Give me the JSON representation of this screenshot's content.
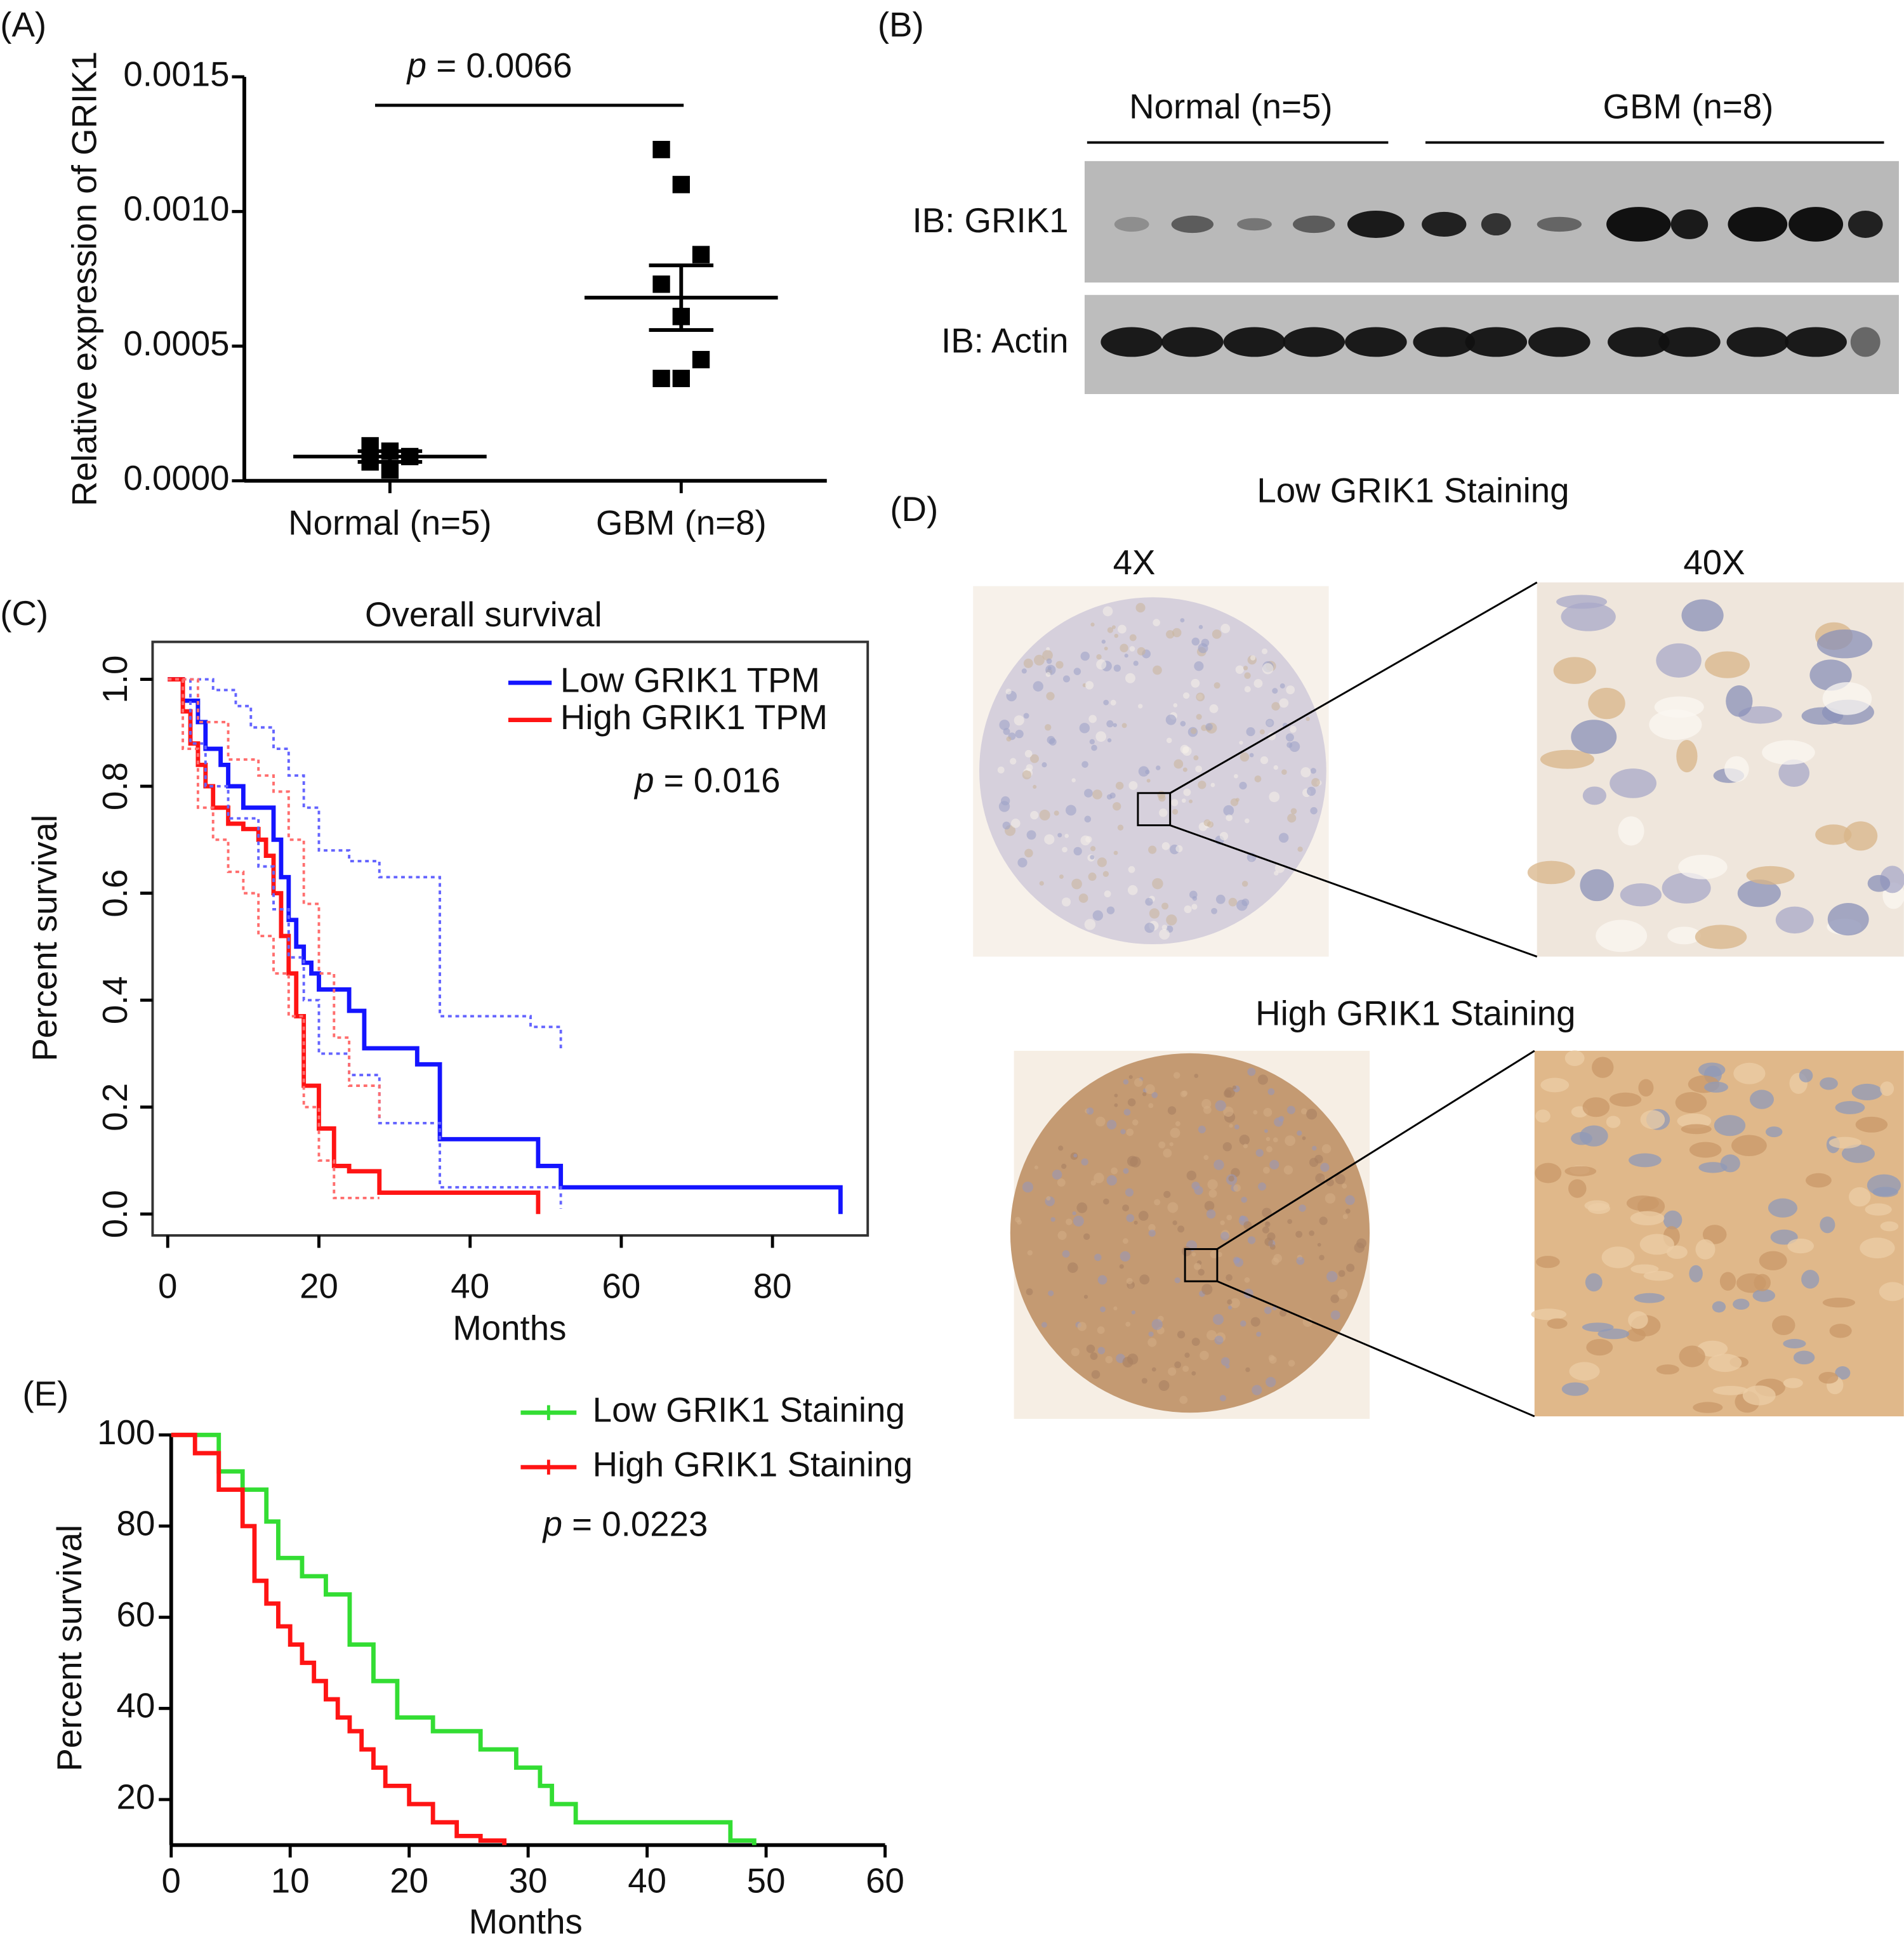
{
  "chart_data": [
    {
      "type": "dot",
      "panel_label": "(A)",
      "y_label": "Relative expression of GRIK1",
      "categories": [
        "Normal (n=5)",
        "GBM (n=8)"
      ],
      "values": [
        [
          0.00013,
          0.00011,
          9e-05,
          7e-05,
          4e-05
        ],
        [
          0.00123,
          0.0011,
          0.00084,
          0.00073,
          0.00061,
          0.00045,
          0.00038,
          0.00038
        ]
      ],
      "means": [
        9e-05,
        0.00068
      ],
      "sems": [
        2e-05,
        0.00012
      ],
      "color": "#000000",
      "ylim": [
        0,
        0.0015
      ],
      "yticks": [
        {
          "value": 0,
          "label": "0.0000"
        },
        {
          "value": 0.0005,
          "label": "0.0005"
        },
        {
          "value": 0.001,
          "label": "0.0010"
        },
        {
          "value": 0.0015,
          "label": "0.0015"
        }
      ],
      "annotation": "p = 0.0066"
    },
    {
      "type": "step",
      "panel_label": "(C)",
      "title": "Overall survival",
      "x_label": "Months",
      "y_label": "Percent survival",
      "xlim": [
        -2,
        92.6
      ],
      "ylim": [
        -0.04,
        1.07
      ],
      "xticks": [
        0,
        20,
        40,
        60,
        80
      ],
      "yticks": [
        {
          "value": 0,
          "label": "0.0"
        },
        0.2,
        0.4,
        0.6,
        0.8,
        {
          "value": 1,
          "label": "1.0"
        }
      ],
      "box": true,
      "legend": "top-right",
      "annotation": "p = 0.016",
      "series": [
        {
          "name": "Low GRIK1 TPM",
          "color": "#1414ff",
          "x": [
            0,
            2,
            4,
            5,
            7,
            8,
            10,
            14,
            15,
            16,
            17,
            18,
            19,
            20,
            22,
            24,
            26,
            30,
            33,
            36,
            49,
            52,
            89
          ],
          "values": [
            1.0,
            0.96,
            0.92,
            0.87,
            0.84,
            0.8,
            0.76,
            0.7,
            0.63,
            0.55,
            0.5,
            0.47,
            0.45,
            0.42,
            0.42,
            0.38,
            0.31,
            0.31,
            0.28,
            0.14,
            0.09,
            0.05,
            0.0
          ]
        },
        {
          "name": "High GRIK1 TPM",
          "color": "#ff1414",
          "x": [
            0,
            2,
            3,
            4,
            5,
            6,
            8,
            10,
            12,
            13,
            14,
            15,
            16,
            17,
            18,
            20,
            22,
            24,
            28,
            49
          ],
          "values": [
            1.0,
            0.94,
            0.88,
            0.84,
            0.8,
            0.76,
            0.73,
            0.72,
            0.7,
            0.67,
            0.6,
            0.52,
            0.45,
            0.37,
            0.24,
            0.16,
            0.09,
            0.08,
            0.04,
            0.0
          ]
        },
        {
          "color": "#6464ff",
          "dash": true,
          "x": [
            0,
            3,
            6,
            9,
            11,
            14,
            16,
            18,
            20,
            24,
            28,
            36,
            48,
            52
          ],
          "values": [
            1.0,
            1.0,
            0.98,
            0.95,
            0.91,
            0.87,
            0.82,
            0.76,
            0.68,
            0.66,
            0.63,
            0.37,
            0.35,
            0.31
          ]
        },
        {
          "color": "#6464ff",
          "dash": true,
          "x": [
            0,
            3,
            5,
            8,
            12,
            14,
            16,
            18,
            20,
            24,
            28,
            36,
            52
          ],
          "values": [
            1.0,
            0.88,
            0.8,
            0.74,
            0.65,
            0.57,
            0.48,
            0.4,
            0.3,
            0.26,
            0.17,
            0.05,
            0.01
          ]
        },
        {
          "color": "#ff6e6e",
          "dash": true,
          "x": [
            0,
            4,
            8,
            12,
            14,
            16,
            18,
            20,
            22,
            24,
            28
          ],
          "values": [
            1.0,
            0.92,
            0.85,
            0.82,
            0.79,
            0.7,
            0.58,
            0.45,
            0.33,
            0.24,
            0.18
          ]
        },
        {
          "color": "#ff6e6e",
          "dash": true,
          "x": [
            0,
            2,
            4,
            6,
            8,
            10,
            12,
            14,
            16,
            18,
            20,
            22,
            28
          ],
          "values": [
            1.0,
            0.87,
            0.76,
            0.7,
            0.64,
            0.6,
            0.52,
            0.45,
            0.37,
            0.2,
            0.1,
            0.03,
            0.03
          ]
        }
      ]
    },
    {
      "type": "step",
      "panel_label": "(E)",
      "x_label": "Months",
      "y_label": "Percent survival",
      "xlim": [
        0,
        60
      ],
      "ylim": [
        10,
        100
      ],
      "xticks": [
        0,
        10,
        20,
        30,
        40,
        50,
        60
      ],
      "yticks": [
        20,
        40,
        60,
        80,
        100
      ],
      "box": false,
      "legend": "top-right",
      "annotation": "p = 0.0223",
      "series": [
        {
          "name": "Low GRIK1 Staining",
          "color": "#33dd33",
          "x": [
            0,
            4,
            6,
            8,
            9,
            11,
            13,
            15,
            17,
            19,
            22,
            26,
            29,
            31,
            32,
            34,
            47,
            49
          ],
          "values": [
            100,
            92,
            88,
            81,
            73,
            69,
            65,
            54,
            46,
            38,
            35,
            31,
            27,
            23,
            19,
            15,
            11,
            10
          ]
        },
        {
          "name": "High GRIK1 Staining",
          "color": "#ff1414",
          "x": [
            0,
            2,
            4,
            6,
            7,
            8,
            9,
            10,
            11,
            12,
            13,
            14,
            15,
            16,
            17,
            18,
            20,
            22,
            24,
            26,
            28
          ],
          "values": [
            100,
            96,
            88,
            80,
            68,
            63,
            58,
            54,
            50,
            46,
            42,
            38,
            35,
            31,
            27,
            23,
            19,
            15,
            12,
            11,
            10
          ]
        }
      ]
    }
  ],
  "blot": {
    "panel_label": "(B)",
    "groups": [
      "Normal (n=5)",
      "GBM (n=8)"
    ],
    "rows": [
      "IB: GRIK1",
      "IB: Actin"
    ]
  },
  "histology": {
    "panel_label": "(D)",
    "low_title": "Low GRIK1 Staining",
    "high_title": "High GRIK1 Staining",
    "magnifications": [
      "4X",
      "40X"
    ]
  }
}
